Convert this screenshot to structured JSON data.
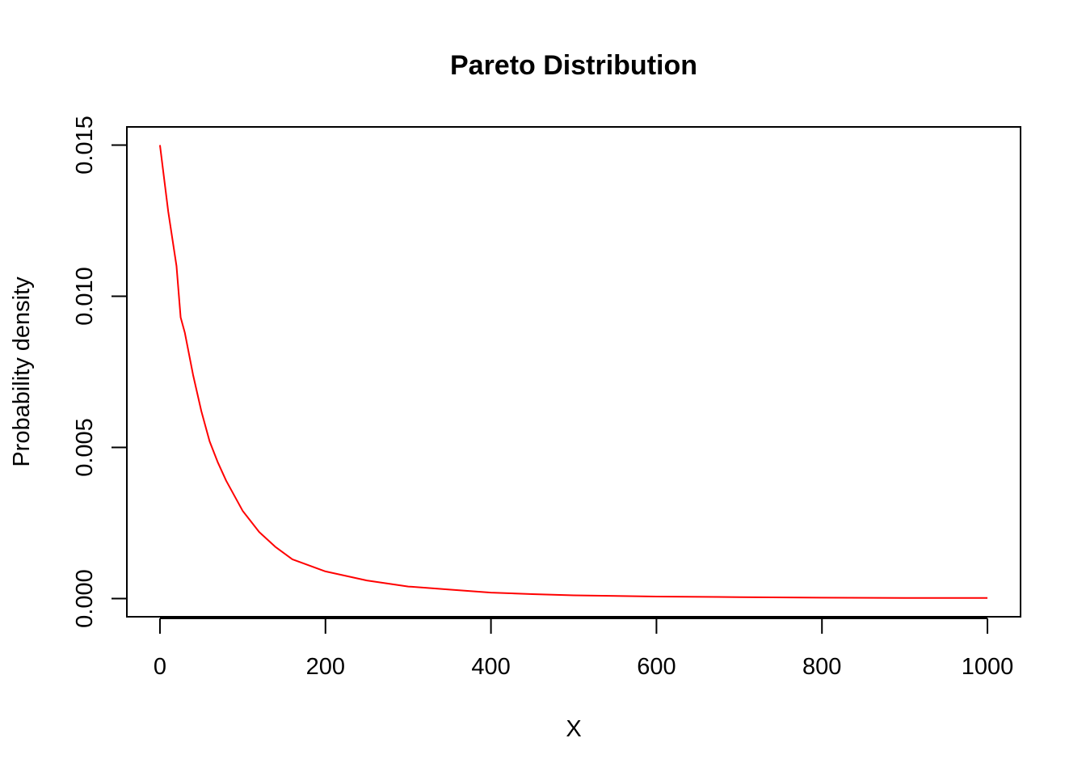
{
  "chart_data": {
    "type": "line",
    "title": "Pareto Distribution",
    "xlabel": "X",
    "ylabel": "Probability density",
    "xlim": [
      -40,
      1040
    ],
    "ylim": [
      -0.0006,
      0.0156
    ],
    "x_ticks": [
      0,
      200,
      400,
      600,
      800,
      1000
    ],
    "x_tick_labels": [
      "0",
      "200",
      "400",
      "600",
      "800",
      "1000"
    ],
    "y_ticks": [
      0,
      0.005,
      0.01,
      0.015
    ],
    "y_tick_labels": [
      "0.000",
      "0.005",
      "0.010",
      "0.015"
    ],
    "grid": false,
    "legend": "none",
    "series": [
      {
        "color": "#ff0000",
        "x": [
          0,
          10,
          20,
          25,
          30,
          40,
          50,
          60,
          70,
          80,
          100,
          120,
          140,
          160,
          180,
          200,
          250,
          300,
          350,
          400,
          450,
          500,
          600,
          700,
          800,
          900,
          1000
        ],
        "y": [
          0.015,
          0.0128,
          0.011,
          0.0093,
          0.0088,
          0.0074,
          0.0062,
          0.0052,
          0.0045,
          0.0039,
          0.0029,
          0.0022,
          0.0017,
          0.0013,
          0.0011,
          0.0009,
          0.0006,
          0.0004,
          0.0003,
          0.0002,
          0.00015,
          0.00011,
          7e-05,
          5e-05,
          3e-05,
          2e-05,
          2e-05
        ]
      }
    ]
  }
}
